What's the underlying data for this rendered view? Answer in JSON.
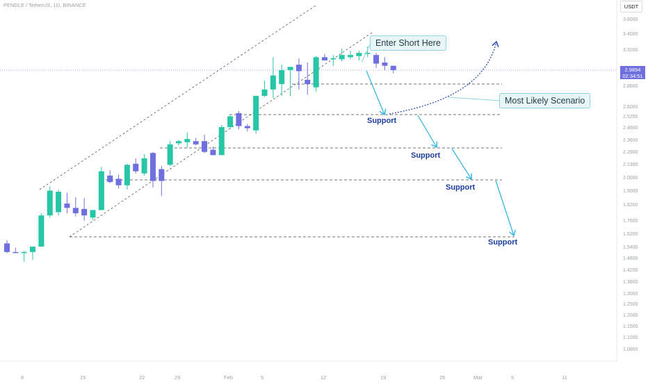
{
  "header": {
    "symbol_line": "PENDLE / TetherUS, 1D, BINANCE",
    "currency": "USDT"
  },
  "price_tag": {
    "price": "2.9894",
    "countdown": "02:34:51"
  },
  "annotations": {
    "enter_short": "Enter Short Here",
    "scenario": "Most Likely Scenario",
    "supports": [
      "Support",
      "Support",
      "Support",
      "Support"
    ]
  },
  "colors": {
    "up": "#26c6a6",
    "down": "#6f6fe0",
    "arrow": "#2ab3e0",
    "scenario": "#1e40af",
    "support_text": "#1b3e9e",
    "callout_bg": "#e9f6f8"
  },
  "chart_data": {
    "type": "candlestick",
    "title": "",
    "xlabel": "",
    "ylabel": "",
    "y_axis_ticks": [
      "3.6000",
      "3.4000",
      "3.3200",
      "2.8800",
      "2.6000",
      "2.5200",
      "2.4600",
      "2.3600",
      "2.2600",
      "2.1300",
      "2.0000",
      "1.9000",
      "1.8200",
      "1.7600",
      "1.6200",
      "1.5400",
      "1.4800",
      "1.4200",
      "1.3800",
      "1.3000",
      "1.2500",
      "1.2000",
      "1.1500",
      "1.1000",
      "1.0800"
    ],
    "x_axis_ticks": [
      "8",
      "15",
      "22",
      "29",
      "Feb",
      "5",
      "12",
      "19",
      "26",
      "Mar",
      "5",
      "11"
    ],
    "candles_note": "daily OHLC in price units",
    "candles": [
      {
        "o": 1.38,
        "h": 1.41,
        "l": 1.29,
        "c": 1.3
      },
      {
        "o": 1.3,
        "h": 1.34,
        "l": 1.3,
        "c": 1.29
      },
      {
        "o": 1.29,
        "h": 1.31,
        "l": 1.21,
        "c": 1.3
      },
      {
        "o": 1.3,
        "h": 1.35,
        "l": 1.23,
        "c": 1.35
      },
      {
        "o": 1.35,
        "h": 1.66,
        "l": 1.35,
        "c": 1.64
      },
      {
        "o": 1.64,
        "h": 1.91,
        "l": 1.62,
        "c": 1.87
      },
      {
        "o": 1.67,
        "h": 1.88,
        "l": 1.64,
        "c": 1.86
      },
      {
        "o": 1.75,
        "h": 1.85,
        "l": 1.66,
        "c": 1.71
      },
      {
        "o": 1.71,
        "h": 1.81,
        "l": 1.63,
        "c": 1.66
      },
      {
        "o": 1.7,
        "h": 1.8,
        "l": 1.59,
        "c": 1.64
      },
      {
        "o": 1.62,
        "h": 1.69,
        "l": 1.6,
        "c": 1.69
      },
      {
        "o": 1.69,
        "h": 2.09,
        "l": 1.69,
        "c": 2.05
      },
      {
        "o": 2.01,
        "h": 2.06,
        "l": 1.94,
        "c": 1.95
      },
      {
        "o": 1.98,
        "h": 2.02,
        "l": 1.89,
        "c": 1.92
      },
      {
        "o": 1.92,
        "h": 2.12,
        "l": 1.88,
        "c": 2.11
      },
      {
        "o": 2.12,
        "h": 2.17,
        "l": 2.03,
        "c": 2.05
      },
      {
        "o": 2.03,
        "h": 2.21,
        "l": 2.01,
        "c": 2.17
      },
      {
        "o": 2.22,
        "h": 2.23,
        "l": 1.9,
        "c": 1.96
      },
      {
        "o": 2.07,
        "h": 2.1,
        "l": 1.82,
        "c": 1.96
      },
      {
        "o": 2.11,
        "h": 2.33,
        "l": 2.1,
        "c": 2.3
      },
      {
        "o": 2.31,
        "h": 2.34,
        "l": 2.29,
        "c": 2.33
      },
      {
        "o": 2.32,
        "h": 2.41,
        "l": 2.27,
        "c": 2.35
      },
      {
        "o": 2.33,
        "h": 2.36,
        "l": 2.29,
        "c": 2.3
      },
      {
        "o": 2.33,
        "h": 2.39,
        "l": 2.22,
        "c": 2.23
      },
      {
        "o": 2.25,
        "h": 2.28,
        "l": 2.21,
        "c": 2.2
      },
      {
        "o": 2.2,
        "h": 2.48,
        "l": 2.2,
        "c": 2.46
      },
      {
        "o": 2.46,
        "h": 2.57,
        "l": 2.44,
        "c": 2.56
      },
      {
        "o": 2.59,
        "h": 2.61,
        "l": 2.44,
        "c": 2.47
      },
      {
        "o": 2.47,
        "h": 2.49,
        "l": 2.42,
        "c": 2.45
      },
      {
        "o": 2.43,
        "h": 2.74,
        "l": 2.4,
        "c": 2.75
      },
      {
        "o": 2.75,
        "h": 2.89,
        "l": 2.74,
        "c": 2.81
      },
      {
        "o": 2.81,
        "h": 3.11,
        "l": 2.73,
        "c": 2.94
      },
      {
        "o": 2.86,
        "h": 3.04,
        "l": 2.75,
        "c": 2.99
      },
      {
        "o": 2.99,
        "h": 3.02,
        "l": 2.75,
        "c": 3.02
      },
      {
        "o": 3.04,
        "h": 3.1,
        "l": 2.81,
        "c": 2.98
      },
      {
        "o": 2.9,
        "h": 3.06,
        "l": 2.76,
        "c": 2.86
      },
      {
        "o": 2.83,
        "h": 3.12,
        "l": 2.79,
        "c": 3.11
      },
      {
        "o": 3.11,
        "h": 3.14,
        "l": 3.09,
        "c": 3.08
      },
      {
        "o": 3.09,
        "h": 3.13,
        "l": 3.03,
        "c": 3.1
      },
      {
        "o": 3.09,
        "h": 3.19,
        "l": 3.07,
        "c": 3.13
      },
      {
        "o": 3.11,
        "h": 3.17,
        "l": 3.09,
        "c": 3.13
      },
      {
        "o": 3.12,
        "h": 3.17,
        "l": 3.08,
        "c": 3.15
      },
      {
        "o": 3.14,
        "h": 3.21,
        "l": 3.11,
        "c": 3.15
      },
      {
        "o": 3.13,
        "h": 3.15,
        "l": 3.01,
        "c": 3.05
      },
      {
        "o": 3.06,
        "h": 3.11,
        "l": 2.99,
        "c": 3.03
      },
      {
        "o": 3.03,
        "h": 3.03,
        "l": 2.96,
        "c": 2.99
      }
    ],
    "grid": false
  }
}
